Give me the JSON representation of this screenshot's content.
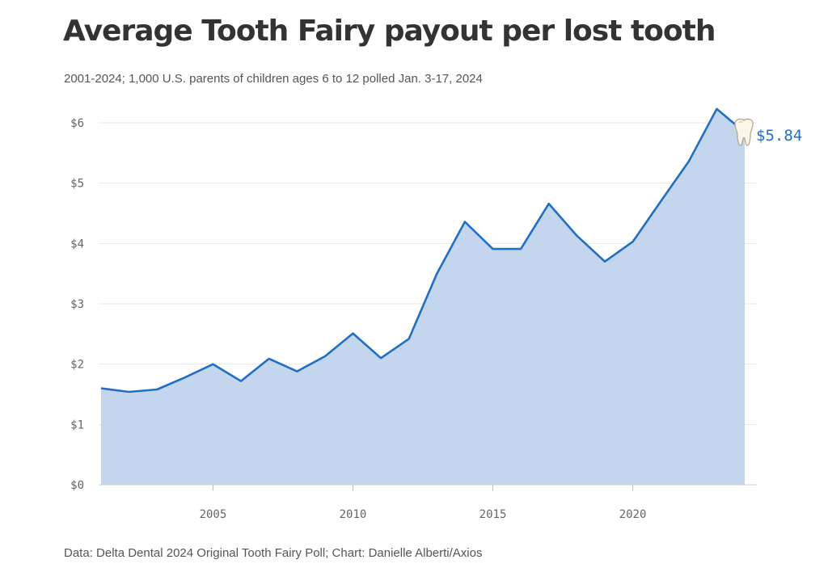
{
  "header": {
    "title": "Average Tooth Fairy payout per lost tooth",
    "subtitle": "2001-2024; 1,000 U.S. parents of children ages 6 to 12 polled Jan. 3-17, 2024"
  },
  "footer": {
    "source": "Data: Delta Dental 2024 Original Tooth Fairy Poll; Chart: Danielle Alberti/Axios"
  },
  "colors": {
    "line": "#1f6fc6",
    "area": "#c0d4ec",
    "grid": "#e4e4e4"
  },
  "chart_data": {
    "type": "area",
    "title": "Average Tooth Fairy payout per lost tooth",
    "xlabel": "",
    "ylabel": "",
    "x": [
      2001,
      2002,
      2003,
      2004,
      2005,
      2006,
      2007,
      2008,
      2009,
      2010,
      2011,
      2012,
      2013,
      2014,
      2015,
      2016,
      2017,
      2018,
      2019,
      2020,
      2021,
      2022,
      2023,
      2024
    ],
    "values": [
      1.6,
      1.54,
      1.58,
      1.78,
      2.0,
      1.72,
      2.09,
      1.88,
      2.13,
      2.51,
      2.1,
      2.42,
      3.5,
      4.36,
      3.91,
      3.91,
      4.66,
      4.13,
      3.7,
      4.03,
      4.7,
      5.36,
      6.23,
      5.84
    ],
    "xlim": [
      2001,
      2024
    ],
    "ylim": [
      0,
      6
    ],
    "x_ticks": [
      2005,
      2010,
      2015,
      2020
    ],
    "x_tick_labels": [
      "2005",
      "2010",
      "2015",
      "2020"
    ],
    "y_ticks": [
      0,
      1,
      2,
      3,
      4,
      5,
      6
    ],
    "y_tick_labels": [
      "$0",
      "$1",
      "$2",
      "$3",
      "$4",
      "$5",
      "$6"
    ],
    "grid": true,
    "end_label": "$5.84",
    "end_icon": "tooth-icon"
  }
}
